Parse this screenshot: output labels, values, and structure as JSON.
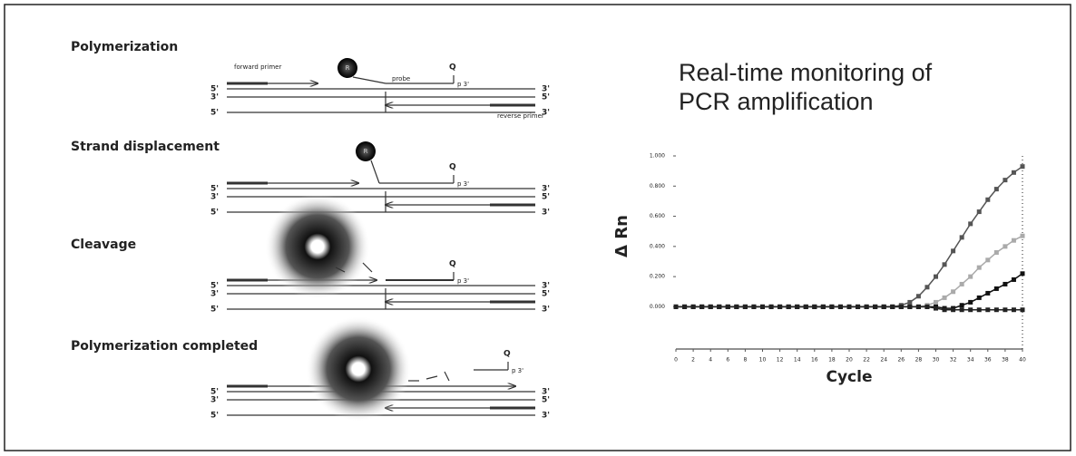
{
  "diagram": {
    "panels": [
      {
        "title": "Polymerization",
        "forward_primer": "forward primer",
        "probe": "probe",
        "reverse_primer": "reverse primer",
        "reporter": "R",
        "quencher": "Q",
        "probe_end": "p 3'",
        "left_ends": [
          "5'",
          "3'",
          "5'"
        ],
        "right_ends": [
          "3'",
          "5'",
          "3'"
        ]
      },
      {
        "title": "Strand displacement",
        "reporter": "R",
        "quencher": "Q",
        "probe_end": "p 3'",
        "left_ends": [
          "5'",
          "3'",
          "5'"
        ],
        "right_ends": [
          "3'",
          "5'",
          "3'"
        ]
      },
      {
        "title": "Cleavage",
        "quencher": "Q",
        "probe_end": "p 3'",
        "left_ends": [
          "5'",
          "3'",
          "5'"
        ],
        "right_ends": [
          "3'",
          "5'",
          "3'"
        ]
      },
      {
        "title": "Polymerization completed",
        "quencher": "Q",
        "probe_end": "p 3'",
        "left_ends": [
          "5'",
          "3'",
          "5'"
        ],
        "right_ends": [
          "3'",
          "5'",
          "3'"
        ]
      }
    ]
  },
  "chart_data": {
    "type": "line",
    "title": "Real-time monitoring of PCR amplification",
    "x_label": "Cycle",
    "y_label": "Δ Rn",
    "x": [
      0,
      1,
      2,
      3,
      4,
      5,
      6,
      7,
      8,
      9,
      10,
      11,
      12,
      13,
      14,
      15,
      16,
      17,
      18,
      19,
      20,
      21,
      22,
      23,
      24,
      25,
      26,
      27,
      28,
      29,
      30,
      31,
      32,
      33,
      34,
      35,
      36,
      37,
      38,
      39,
      40
    ],
    "series": [
      {
        "color": "#555555",
        "values": [
          0,
          0,
          0,
          0,
          0,
          0,
          0,
          0,
          0,
          0,
          0,
          0,
          0,
          0,
          0,
          0,
          0,
          0,
          0,
          0,
          0,
          0,
          0,
          0,
          0,
          0,
          0.01,
          0.03,
          0.07,
          0.13,
          0.2,
          0.28,
          0.37,
          0.46,
          0.55,
          0.63,
          0.71,
          0.78,
          0.84,
          0.89,
          0.93
        ]
      },
      {
        "color": "#aaaaaa",
        "values": [
          0,
          0,
          0,
          0,
          0,
          0,
          0,
          0,
          0,
          0,
          0,
          0,
          0,
          0,
          0,
          0,
          0,
          0,
          0,
          0,
          0,
          0,
          0,
          0,
          0,
          0,
          0,
          0,
          0,
          0.01,
          0.03,
          0.06,
          0.1,
          0.15,
          0.2,
          0.26,
          0.31,
          0.36,
          0.4,
          0.44,
          0.47
        ]
      },
      {
        "color": "#111111",
        "values": [
          0,
          0,
          0,
          0,
          0,
          0,
          0,
          0,
          0,
          0,
          0,
          0,
          0,
          0,
          0,
          0,
          0,
          0,
          0,
          0,
          0,
          0,
          0,
          0,
          0,
          0,
          0,
          0,
          0,
          0,
          0,
          -0.01,
          -0.01,
          0.01,
          0.03,
          0.06,
          0.09,
          0.12,
          0.15,
          0.18,
          0.22
        ]
      },
      {
        "color": "#222222",
        "values": [
          0,
          0,
          0,
          0,
          0,
          0,
          0,
          0,
          0,
          0,
          0,
          0,
          0,
          0,
          0,
          0,
          0,
          0,
          0,
          0,
          0,
          0,
          0,
          0,
          0,
          0,
          0,
          0,
          0,
          0,
          -0.01,
          -0.02,
          -0.02,
          -0.02,
          -0.02,
          -0.02,
          -0.02,
          -0.02,
          -0.02,
          -0.02,
          -0.02
        ]
      }
    ],
    "xlim": [
      0,
      40
    ],
    "xticks": [
      0,
      2,
      4,
      6,
      8,
      10,
      12,
      14,
      16,
      18,
      20,
      22,
      24,
      26,
      28,
      30,
      32,
      34,
      36,
      38,
      40
    ],
    "ylim": [
      -0.28,
      1.0
    ],
    "yticks": [
      {
        "value": 0,
        "label": "0.000"
      },
      {
        "value": 0.2,
        "label": "0.200"
      },
      {
        "value": 0.4,
        "label": "0.400"
      },
      {
        "value": 0.6,
        "label": "0.600"
      },
      {
        "value": 0.8,
        "label": "0.800"
      },
      {
        "value": 1.0,
        "label": "1.000"
      }
    ]
  }
}
